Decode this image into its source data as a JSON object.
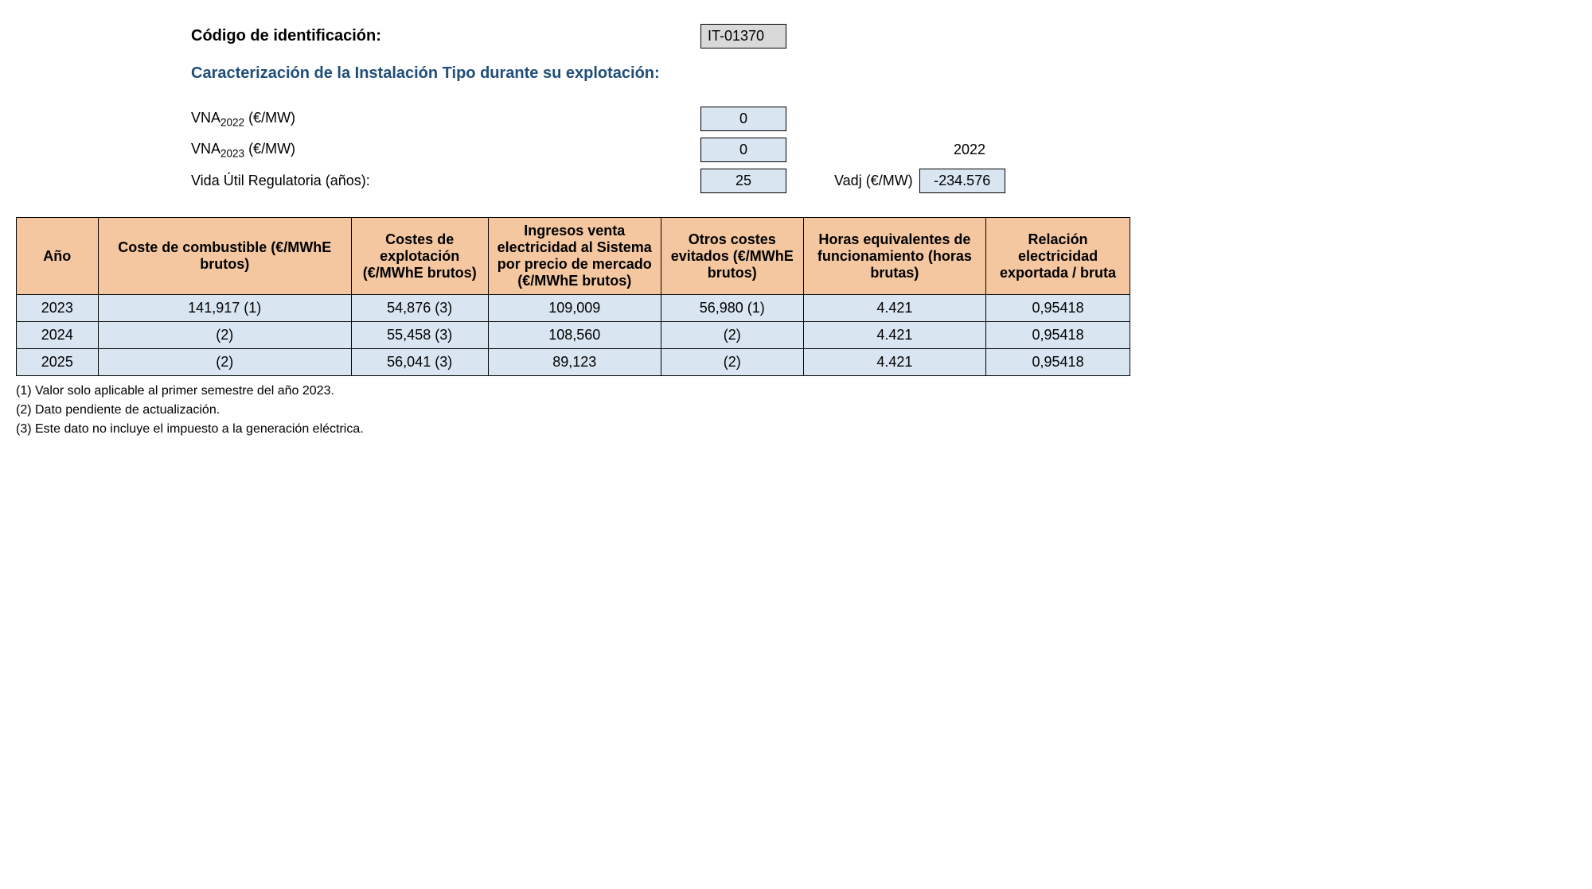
{
  "header": {
    "code_label": "Código de identificación:",
    "code_value": "IT-01370",
    "char_title": "Caracterización de la Instalación Tipo durante su explotación:"
  },
  "params": {
    "vna2022_label_prefix": "VNA",
    "vna2022_sub": "2022",
    "vna2022_label_suffix": " (€/MW)",
    "vna2022_value": "0",
    "vna2023_label_prefix": "VNA",
    "vna2023_sub": "2023",
    "vna2023_label_suffix": " (€/MW)",
    "vna2023_value": "0",
    "year_right": "2022",
    "life_label": "Vida Útil Regulatoria (años):",
    "life_value": "25",
    "vadj_label": "Vadj (€/MW)",
    "vadj_value": "-234.576"
  },
  "table": {
    "columns": [
      "Año",
      "Coste de combustible (€/MWhE brutos)",
      "Costes de explotación (€/MWhE brutos)",
      "Ingresos venta electricidad al Sistema por precio de mercado (€/MWhE brutos)",
      "Otros costes evitados (€/MWhE brutos)",
      "Horas equivalentes de funcionamiento (horas brutas)",
      "Relación electricidad exportada / bruta"
    ],
    "rows": [
      [
        "2023",
        "141,917 (1)",
        "54,876 (3)",
        "109,009",
        "56,980 (1)",
        "4.421",
        "0,95418"
      ],
      [
        "2024",
        "(2)",
        "55,458 (3)",
        "108,560",
        "(2)",
        "4.421",
        "0,95418"
      ],
      [
        "2025",
        "(2)",
        "56,041 (3)",
        "89,123",
        "(2)",
        "4.421",
        "0,95418"
      ]
    ],
    "header_bg": "#f4c7a1",
    "cell_bg": "#d9e6f2"
  },
  "footnotes": [
    "(1) Valor solo aplicable al primer semestre del año 2023.",
    "(2) Dato pendiente de actualización.",
    "(3) Este dato no incluye el impuesto a la generación eléctrica."
  ]
}
